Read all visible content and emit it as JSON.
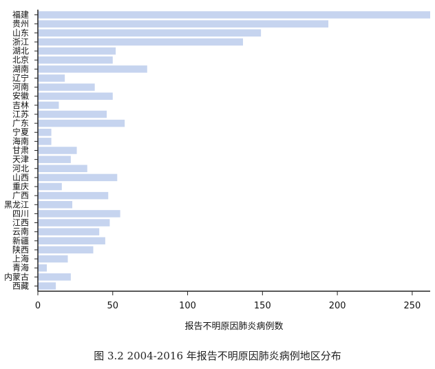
{
  "chart_data": {
    "type": "bar",
    "orientation": "horizontal",
    "categories": [
      "福建",
      "贵州",
      "山东",
      "浙江",
      "湖北",
      "北京",
      "湖南",
      "辽宁",
      "河南",
      "安徽",
      "吉林",
      "江苏",
      "广东",
      "宁夏",
      "海南",
      "甘肃",
      "天津",
      "河北",
      "山西",
      "重庆",
      "广西",
      "黑龙江",
      "四川",
      "江西",
      "云南",
      "新疆",
      "陕西",
      "上海",
      "青海",
      "内蒙古",
      "西藏"
    ],
    "values": [
      262,
      194,
      149,
      137,
      52,
      50,
      73,
      18,
      38,
      50,
      14,
      46,
      58,
      9,
      9,
      26,
      22,
      33,
      53,
      16,
      47,
      23,
      55,
      48,
      41,
      45,
      37,
      20,
      6,
      22,
      12
    ],
    "xlabel": "报告不明原因肺炎病例数",
    "ylabel": "",
    "xlim": [
      0,
      262
    ],
    "xticks": [
      0,
      50,
      100,
      150,
      200,
      250
    ],
    "colors": {
      "bar": "#c6d4ef",
      "axis": "#222222"
    },
    "grid": false,
    "legend": "none"
  },
  "caption": "图 3.2   2004-2016 年报告不明原因肺炎病例地区分布"
}
